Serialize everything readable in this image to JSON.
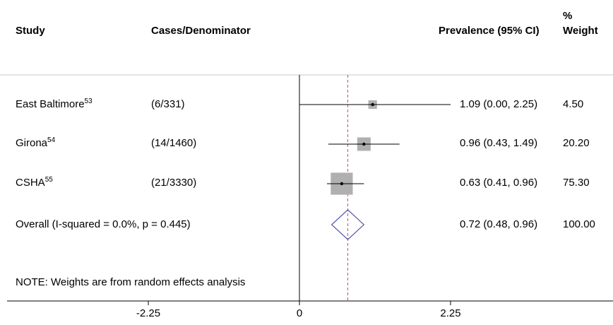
{
  "headers": {
    "study": "Study",
    "cases": "Cases/Denominator",
    "prevalence": "Prevalence (95% CI)",
    "weight_top": "%",
    "weight_bottom": "Weight"
  },
  "rows": [
    {
      "study": "East Baltimore",
      "ref": "53",
      "cases": "(6/331)",
      "ci_text": "1.09 (0.00, 2.25)",
      "weight_text": "4.50"
    },
    {
      "study": "Girona",
      "ref": "54",
      "cases": "(14/1460)",
      "ci_text": "0.96 (0.43, 1.49)",
      "weight_text": "20.20"
    },
    {
      "study": "CSHA",
      "ref": "55",
      "cases": "(21/3330)",
      "ci_text": "0.63 (0.41, 0.96)",
      "weight_text": "75.30"
    }
  ],
  "overall": {
    "label": "Overall  (I-squared = 0.0%, p = 0.445)",
    "ci_text": "0.72 (0.48, 0.96)",
    "weight_text": "100.00"
  },
  "note": "NOTE: Weights are from random effects analysis",
  "colors": {
    "box": "#b0b0b0",
    "diamond": "#5a5aa8",
    "dashed": "#b05a5a",
    "line": "#000000"
  },
  "chart_data": {
    "type": "forest",
    "xlim": [
      -4.05,
      4.05
    ],
    "ticks": [
      -2.25,
      0,
      2.25
    ],
    "tick_labels": [
      "-2.25",
      "0",
      "2.25"
    ],
    "studies": [
      {
        "name": "East Baltimore",
        "estimate": 1.09,
        "lower": 0.0,
        "upper": 2.25,
        "weight": 4.5
      },
      {
        "name": "Girona",
        "estimate": 0.96,
        "lower": 0.43,
        "upper": 1.49,
        "weight": 20.2
      },
      {
        "name": "CSHA",
        "estimate": 0.63,
        "lower": 0.41,
        "upper": 0.96,
        "weight": 75.3
      }
    ],
    "overall": {
      "estimate": 0.72,
      "lower": 0.48,
      "upper": 0.96,
      "weight": 100.0
    }
  }
}
